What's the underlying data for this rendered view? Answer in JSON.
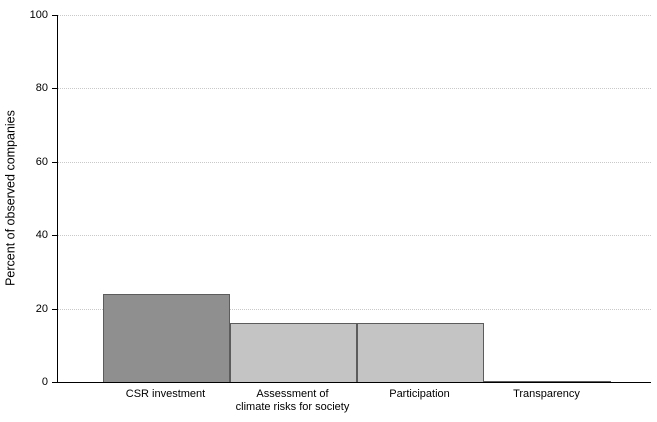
{
  "chart_data": {
    "type": "bar",
    "title": "",
    "xlabel": "",
    "ylabel": "Percent of observed companies",
    "ylim": [
      0,
      100
    ],
    "yticks": [
      0,
      20,
      40,
      60,
      80,
      100
    ],
    "grid": "horizontal dotted gridlines at each y tick",
    "legend": "none",
    "categories": [
      "CSR investment",
      "Assessment of\nclimate risks for society",
      "Participation",
      "Transparency"
    ],
    "values": [
      24,
      16,
      16,
      0
    ],
    "bar_colors": [
      "#8f8f8f",
      "#c4c4c4",
      "#c4c4c4",
      "#c4c4c4"
    ],
    "bar_border_color": "#5c5c5c",
    "background_color": "#ffffff",
    "axis_color": "#000000",
    "gridline_color": "#c9c9c9"
  }
}
